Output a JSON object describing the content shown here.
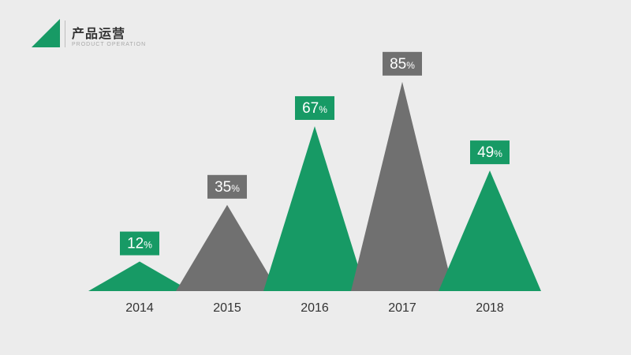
{
  "header": {
    "title": "产品运营",
    "subtitle": "PRODUCT OPERATION",
    "accent_color": "#179a65"
  },
  "chart_data": {
    "type": "bar",
    "style": "triangular peaks",
    "categories": [
      "2014",
      "2015",
      "2016",
      "2017",
      "2018"
    ],
    "values": [
      12,
      35,
      67,
      85,
      49
    ],
    "value_suffix": "%",
    "colors": [
      "#179a65",
      "#707070",
      "#179a65",
      "#707070",
      "#179a65"
    ],
    "title": "",
    "xlabel": "",
    "ylabel": "",
    "ylim": [
      0,
      100
    ],
    "grid": false,
    "legend": "none"
  }
}
